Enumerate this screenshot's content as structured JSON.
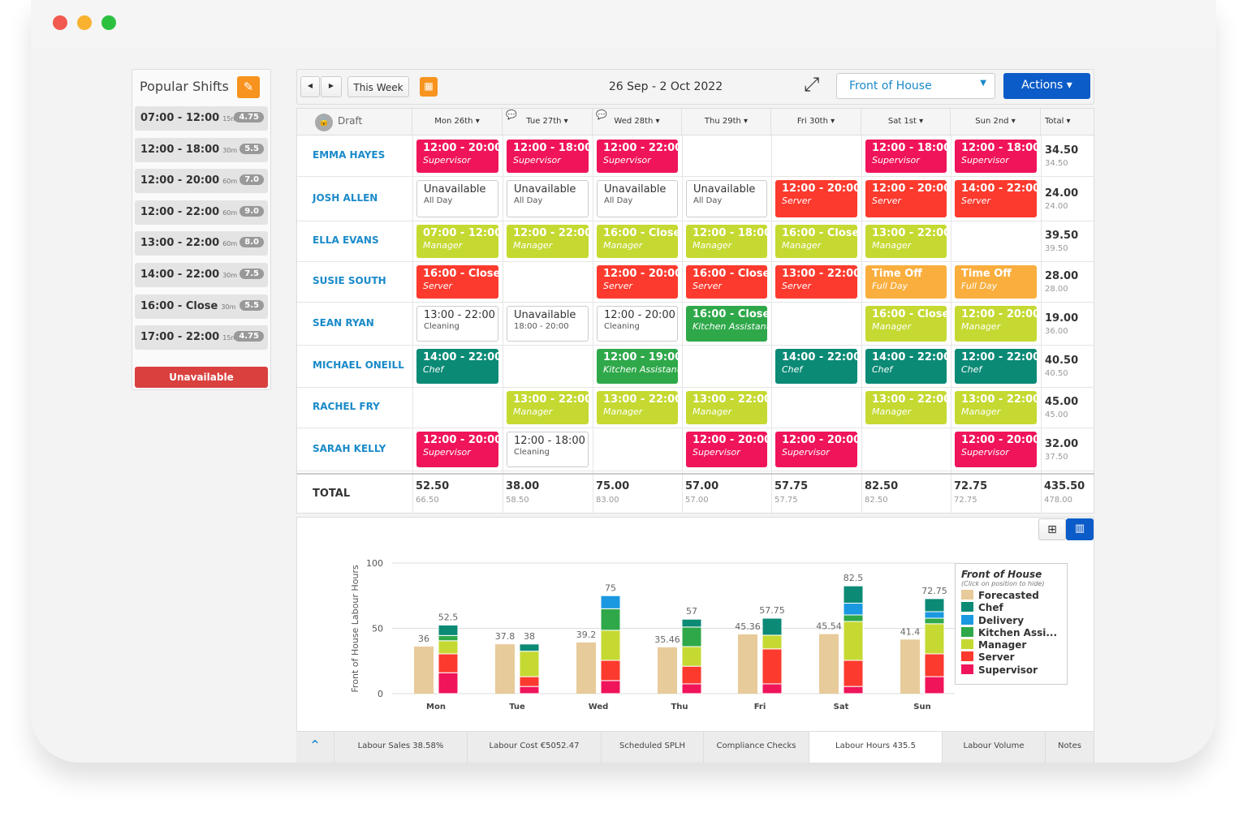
{
  "window": {
    "controls": [
      "#f25a4f",
      "#f8b230",
      "#2bc13f"
    ]
  },
  "popular_shifts": {
    "title": "Popular Shifts",
    "edit_icon": "pencil-icon",
    "items": [
      {
        "time": "07:00 - 12:00",
        "break": "15m",
        "hours": "4.75"
      },
      {
        "time": "12:00 - 18:00",
        "break": "30m",
        "hours": "5.5"
      },
      {
        "time": "12:00 - 20:00",
        "break": "60m",
        "hours": "7.0"
      },
      {
        "time": "12:00 - 22:00",
        "break": "60m",
        "hours": "9.0"
      },
      {
        "time": "13:00 - 22:00",
        "break": "60m",
        "hours": "8.0"
      },
      {
        "time": "14:00 - 22:00",
        "break": "30m",
        "hours": "7.5"
      },
      {
        "time": "16:00 - Close",
        "break": "30m",
        "hours": "5.5"
      },
      {
        "time": "17:00 - 22:00",
        "break": "15m",
        "hours": "4.75"
      }
    ],
    "unavailable_label": "Unavailable"
  },
  "toolbar": {
    "prev": "◀",
    "next": "▶",
    "this_week": "This Week",
    "date_range": "26 Sep - 2 Oct 2022",
    "department": "Front of House",
    "actions": "Actions ▾"
  },
  "colors": {
    "Supervisor": "#f0145a",
    "Server": "#fc3a2e",
    "Manager": "#c5d932",
    "Chef": "#0b8a76",
    "Kitchen Assistant": "#2fa84a",
    "Delivery": "#1a98e0",
    "Forecasted": "#e8cb9a",
    "TimeOff": "#f9ae3e"
  },
  "grid": {
    "status": "Draft",
    "days": [
      "Mon 26th ▾",
      "Tue 27th ▾",
      "Wed 28th ▾",
      "Thu 29th ▾",
      "Fri 30th ▾",
      "Sat 1st ▾",
      "Sun 2nd ▾"
    ],
    "total_header": "Total ▾",
    "rows": [
      {
        "name": "EMMA HAYES",
        "total": "34.50",
        "total2": "34.50",
        "cells": [
          {
            "t": "12:00 - 20:00",
            "r": "Supervisor",
            "c": "Supervisor"
          },
          {
            "t": "12:00 - 18:00",
            "r": "Supervisor",
            "c": "Supervisor"
          },
          {
            "t": "12:00 - 22:00",
            "r": "Supervisor",
            "c": "Supervisor"
          },
          null,
          null,
          {
            "t": "12:00 - 18:00",
            "r": "Supervisor",
            "c": "Supervisor"
          },
          {
            "t": "12:00 - 18:00",
            "r": "Supervisor",
            "c": "Supervisor"
          }
        ]
      },
      {
        "name": "JOSH ALLEN",
        "total": "24.00",
        "total2": "24.00",
        "cells": [
          {
            "t": "Unavailable",
            "r": "All Day",
            "c": "plain"
          },
          {
            "t": "Unavailable",
            "r": "All Day",
            "c": "plain"
          },
          {
            "t": "Unavailable",
            "r": "All Day",
            "c": "plain"
          },
          {
            "t": "Unavailable",
            "r": "All Day",
            "c": "plain"
          },
          {
            "t": "12:00 - 20:00",
            "r": "Server",
            "c": "Server"
          },
          {
            "t": "12:00 - 20:00",
            "r": "Server",
            "c": "Server"
          },
          {
            "t": "14:00 - 22:00",
            "r": "Server",
            "c": "Server"
          }
        ]
      },
      {
        "name": "ELLA EVANS",
        "total": "39.50",
        "total2": "39.50",
        "cells": [
          {
            "t": "07:00 - 12:00",
            "r": "Manager",
            "c": "Manager"
          },
          {
            "t": "12:00 - 22:00",
            "r": "Manager",
            "c": "Manager"
          },
          {
            "t": "16:00 - Close",
            "r": "Manager",
            "c": "Manager"
          },
          {
            "t": "12:00 - 18:00",
            "r": "Manager",
            "c": "Manager"
          },
          {
            "t": "16:00 - Close",
            "r": "Manager",
            "c": "Manager"
          },
          {
            "t": "13:00 - 22:00",
            "r": "Manager",
            "c": "Manager"
          },
          null
        ]
      },
      {
        "name": "SUSIE SOUTH",
        "total": "28.00",
        "total2": "28.00",
        "cells": [
          {
            "t": "16:00 - Close",
            "r": "Server",
            "c": "Server"
          },
          null,
          {
            "t": "12:00 - 20:00",
            "r": "Server",
            "c": "Server"
          },
          {
            "t": "16:00 - Close",
            "r": "Server",
            "c": "Server"
          },
          {
            "t": "13:00 - 22:00",
            "r": "Server",
            "c": "Server"
          },
          {
            "t": "Time Off",
            "r": "Full Day",
            "c": "TimeOff"
          },
          {
            "t": "Time Off",
            "r": "Full Day",
            "c": "TimeOff"
          }
        ]
      },
      {
        "name": "SEAN RYAN",
        "total": "19.00",
        "total2": "36.00",
        "cells": [
          {
            "t": "13:00 - 22:00",
            "r": "Cleaning",
            "c": "plain"
          },
          {
            "t": "Unavailable",
            "r": "18:00 - 20:00",
            "c": "plain"
          },
          {
            "t": "12:00 - 20:00",
            "r": "Cleaning",
            "c": "plain"
          },
          {
            "t": "16:00 - Close",
            "r": "Kitchen Assistant",
            "c": "Kitchen Assistant"
          },
          null,
          {
            "t": "16:00 - Close",
            "r": "Manager",
            "c": "Manager"
          },
          {
            "t": "12:00 - 20:00",
            "r": "Manager",
            "c": "Manager"
          }
        ]
      },
      {
        "name": "MICHAEL ONEILL",
        "total": "40.50",
        "total2": "40.50",
        "cells": [
          {
            "t": "14:00 - 22:00",
            "r": "Chef",
            "c": "Chef"
          },
          null,
          {
            "t": "12:00 - 19:00",
            "r": "Kitchen Assistant",
            "c": "Kitchen Assistant"
          },
          null,
          {
            "t": "14:00 - 22:00",
            "r": "Chef",
            "c": "Chef"
          },
          {
            "t": "14:00 - 22:00",
            "r": "Chef",
            "c": "Chef"
          },
          {
            "t": "12:00 - 22:00",
            "r": "Chef",
            "c": "Chef"
          }
        ]
      },
      {
        "name": "RACHEL FRY",
        "total": "45.00",
        "total2": "45.00",
        "cells": [
          null,
          {
            "t": "13:00 - 22:00",
            "r": "Manager",
            "c": "Manager"
          },
          {
            "t": "13:00 - 22:00",
            "r": "Manager",
            "c": "Manager"
          },
          {
            "t": "13:00 - 22:00",
            "r": "Manager",
            "c": "Manager"
          },
          null,
          {
            "t": "13:00 - 22:00",
            "r": "Manager",
            "c": "Manager"
          },
          {
            "t": "13:00 - 22:00",
            "r": "Manager",
            "c": "Manager"
          }
        ]
      },
      {
        "name": "SARAH KELLY",
        "total": "32.00",
        "total2": "37.50",
        "cells": [
          {
            "t": "12:00 - 20:00",
            "r": "Supervisor",
            "c": "Supervisor"
          },
          {
            "t": "12:00 - 18:00",
            "r": "Cleaning",
            "c": "plain"
          },
          null,
          {
            "t": "12:00 - 20:00",
            "r": "Supervisor",
            "c": "Supervisor"
          },
          {
            "t": "12:00 - 20:00",
            "r": "Supervisor",
            "c": "Supervisor"
          },
          null,
          {
            "t": "12:00 - 20:00",
            "r": "Supervisor",
            "c": "Supervisor"
          }
        ]
      }
    ],
    "total_label": "TOTAL",
    "totals": [
      [
        "52.50",
        "66.50"
      ],
      [
        "38.00",
        "58.50"
      ],
      [
        "75.00",
        "83.00"
      ],
      [
        "57.00",
        "57.00"
      ],
      [
        "57.75",
        "57.75"
      ],
      [
        "82.50",
        "82.50"
      ],
      [
        "72.75",
        "72.75"
      ],
      [
        "435.50",
        "478.00"
      ]
    ]
  },
  "view_toggle": {
    "table_icon": "table-icon",
    "chart_icon": "bar-chart-icon"
  },
  "chart_data": {
    "type": "bar",
    "ylabel": "Front of House Labour Hours",
    "ylim": [
      0,
      100
    ],
    "yticks": [
      0,
      50,
      100
    ],
    "grid": true,
    "categories": [
      "Mon",
      "Tue",
      "Wed",
      "Thu",
      "Fri",
      "Sat",
      "Sun"
    ],
    "forecasted": [
      36,
      37.8,
      39.2,
      35.46,
      45.36,
      45.54,
      41.4
    ],
    "forecast_labels": [
      "36",
      "37.8",
      "39.2",
      "35.46",
      "45.36",
      "45.54",
      "41.4"
    ],
    "actual_labels": [
      "52.5",
      "38",
      "75",
      "57",
      "57.75",
      "82.5",
      "72.75"
    ],
    "stacked_series": [
      {
        "name": "Supervisor",
        "values": [
          16,
          5.5,
          10,
          7.5,
          7.5,
          5.5,
          13
        ]
      },
      {
        "name": "Server",
        "values": [
          14.5,
          7.5,
          15.5,
          13.5,
          26.75,
          20,
          17.5
        ]
      },
      {
        "name": "Manager",
        "values": [
          10,
          19.5,
          23,
          15,
          10.5,
          29.75,
          23
        ]
      },
      {
        "name": "Kitchen Assistant",
        "values": [
          4,
          0,
          16.5,
          15,
          0,
          5,
          4.25
        ]
      },
      {
        "name": "Delivery",
        "values": [
          0,
          0,
          10,
          0,
          0,
          9,
          5
        ]
      },
      {
        "name": "Chef",
        "values": [
          8,
          5.5,
          0,
          6,
          13,
          13.25,
          10
        ]
      }
    ],
    "legend": {
      "title": "Front of House",
      "subtitle": "(Click on position to hide)",
      "placement": "right",
      "entries": [
        "Forecasted",
        "Chef",
        "Delivery",
        "Kitchen Assi...",
        "Manager",
        "Server",
        "Supervisor"
      ],
      "keys": [
        "Forecasted",
        "Chef",
        "Delivery",
        "Kitchen Assistant",
        "Manager",
        "Server",
        "Supervisor"
      ]
    }
  },
  "footer_tabs": [
    "^",
    "Labour Sales 38.58%",
    "Labour Cost €5052.47",
    "Scheduled SPLH",
    "Compliance Checks",
    "Labour Hours 435.5",
    "Labour Volume",
    "Notes"
  ]
}
